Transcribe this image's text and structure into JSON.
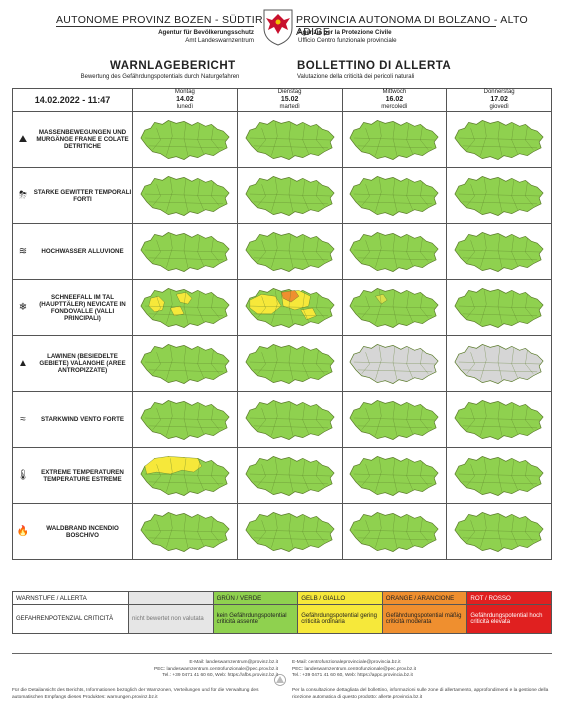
{
  "header": {
    "left_title": "AUTONOME PROVINZ BOZEN - SÜDTIROL",
    "right_title": "PROVINCIA AUTONOMA DI BOLZANO - ALTO ADIGE",
    "left_sub1": "Agentur für Bevölkerungsschutz",
    "left_sub2": "Amt Landeswarnzentrum",
    "right_sub1": "Agenzia per la Protezione Civile",
    "right_sub2": "Ufficio Centro funzionale provinciale"
  },
  "titles": {
    "de": "WARNLAGEBERICHT",
    "it": "BOLLETTINO DI ALLERTA",
    "de_sub": "Bewertung des Gefährdungspotentials durch Naturgefahren",
    "it_sub": "Valutazione della criticità dei pericoli naturali"
  },
  "table": {
    "date": "14.02.2022 - 11:47",
    "days": [
      {
        "de": "Montag",
        "date": "14.02",
        "it": "lunedì"
      },
      {
        "de": "Dienstag",
        "date": "15.02",
        "it": "martedì"
      },
      {
        "de": "Mittwoch",
        "date": "16.02",
        "it": "mercoledì"
      },
      {
        "de": "Donnerstag",
        "date": "17.02",
        "it": "giovedì"
      }
    ],
    "hazards": [
      {
        "icon": "landslide-icon",
        "glyph": "⛰",
        "label": "MASSENBEWEGUNGEN UND MURGÄNGE FRANE E COLATE DETRITICHE",
        "levels": [
          "green",
          "green",
          "green",
          "green"
        ]
      },
      {
        "icon": "thunderstorm-icon",
        "glyph": "⛈",
        "label": "STARKE GEWITTER TEMPORALI FORTI",
        "levels": [
          "green",
          "green",
          "green",
          "green"
        ]
      },
      {
        "icon": "flood-icon",
        "glyph": "≋",
        "label": "HOCHWASSER ALLUVIONE",
        "levels": [
          "green",
          "green",
          "green",
          "green"
        ]
      },
      {
        "icon": "snowfall-icon",
        "glyph": "❄",
        "label": "SCHNEEFALL IM TAL (HAUPTTÄLER) NEVICATE IN FONDOVALLE (VALLI PRINCIPALI)",
        "levels": [
          "mixed-yellow",
          "mixed-orange",
          "mixed-green",
          "green"
        ]
      },
      {
        "icon": "avalanche-icon",
        "glyph": "▲",
        "label": "LAWINEN (BESIEDELTE GEBIETE) VALANGHE (AREE ANTROPIZZATE)",
        "levels": [
          "green",
          "green",
          "grey",
          "grey"
        ]
      },
      {
        "icon": "wind-icon",
        "glyph": "≈",
        "label": "STARKWIND VENTO FORTE",
        "levels": [
          "green",
          "green",
          "green",
          "green"
        ]
      },
      {
        "icon": "thermometer-icon",
        "glyph": "🌡",
        "label": "EXTREME TEMPERATUREN TEMPERATURE ESTREME",
        "levels": [
          "north-yellow",
          "green",
          "green",
          "green"
        ]
      },
      {
        "icon": "wildfire-icon",
        "glyph": "🔥",
        "label": "WALDBRAND INCENDIO BOSCHIVO",
        "levels": [
          "green",
          "green",
          "green",
          "green"
        ]
      }
    ]
  },
  "colors": {
    "green": "#8fd14f",
    "yellow": "#f6e83a",
    "orange": "#ef8f2f",
    "grey": "#d6d6d6",
    "red": "#e02020",
    "stroke": "#5a7a2a"
  },
  "legend": {
    "head_label": "WARNSTUFE / ALLERTA",
    "head": [
      "",
      "GRÜN / VERDE",
      "GELB / GIALLO",
      "ORANGE / ARANCIONE",
      "ROT / ROSSO"
    ],
    "row_label": "GEFAHRENPOTENZIAL CRITICITÀ",
    "row": [
      "nicht bewertet non valutata",
      "kein Gefährdungspotential criticità assente",
      "Gefährdungspotential gering criticità ordinaria",
      "Gefährdungspotential mäßig criticità moderata",
      "Gefährdungspotential hoch criticità elevata"
    ]
  },
  "footer": {
    "left_l1": "E-Mail: landeswarnzentrum@provinz.bz.it",
    "left_l2": "PEC: landeswarnzentrum.centrofunzionale@pec.prov.bz.it",
    "left_l3": "Tel.: +39 0471 41 60 60, Web: https://afbs.provinz.bz.it",
    "right_l1": "E-Mail: centrofunzionaleprovinciale@provincia.bz.it",
    "right_l2": "PEC: landeswarnzentrum.centrofunzionale@pec.prov.bz.it",
    "right_l3": "Tel.: +39 0471 41 60 60, Web: https://appc.provincia.bz.it",
    "left_note": "Für die Detailansicht des Berichts, Informationen bezüglich der Warnzonen, Verteilungen und für die Verwaltung des automatischen Empfangs dieses Produktes: warnungen.provinz.bz.it",
    "right_note": "Per la consultazione dettagliata del bollettino, informazioni sulle zone di allertamento, approfondimenti e la gestione della ricezione automatica di questo prodotto: allerte.provincia.bz.it"
  }
}
